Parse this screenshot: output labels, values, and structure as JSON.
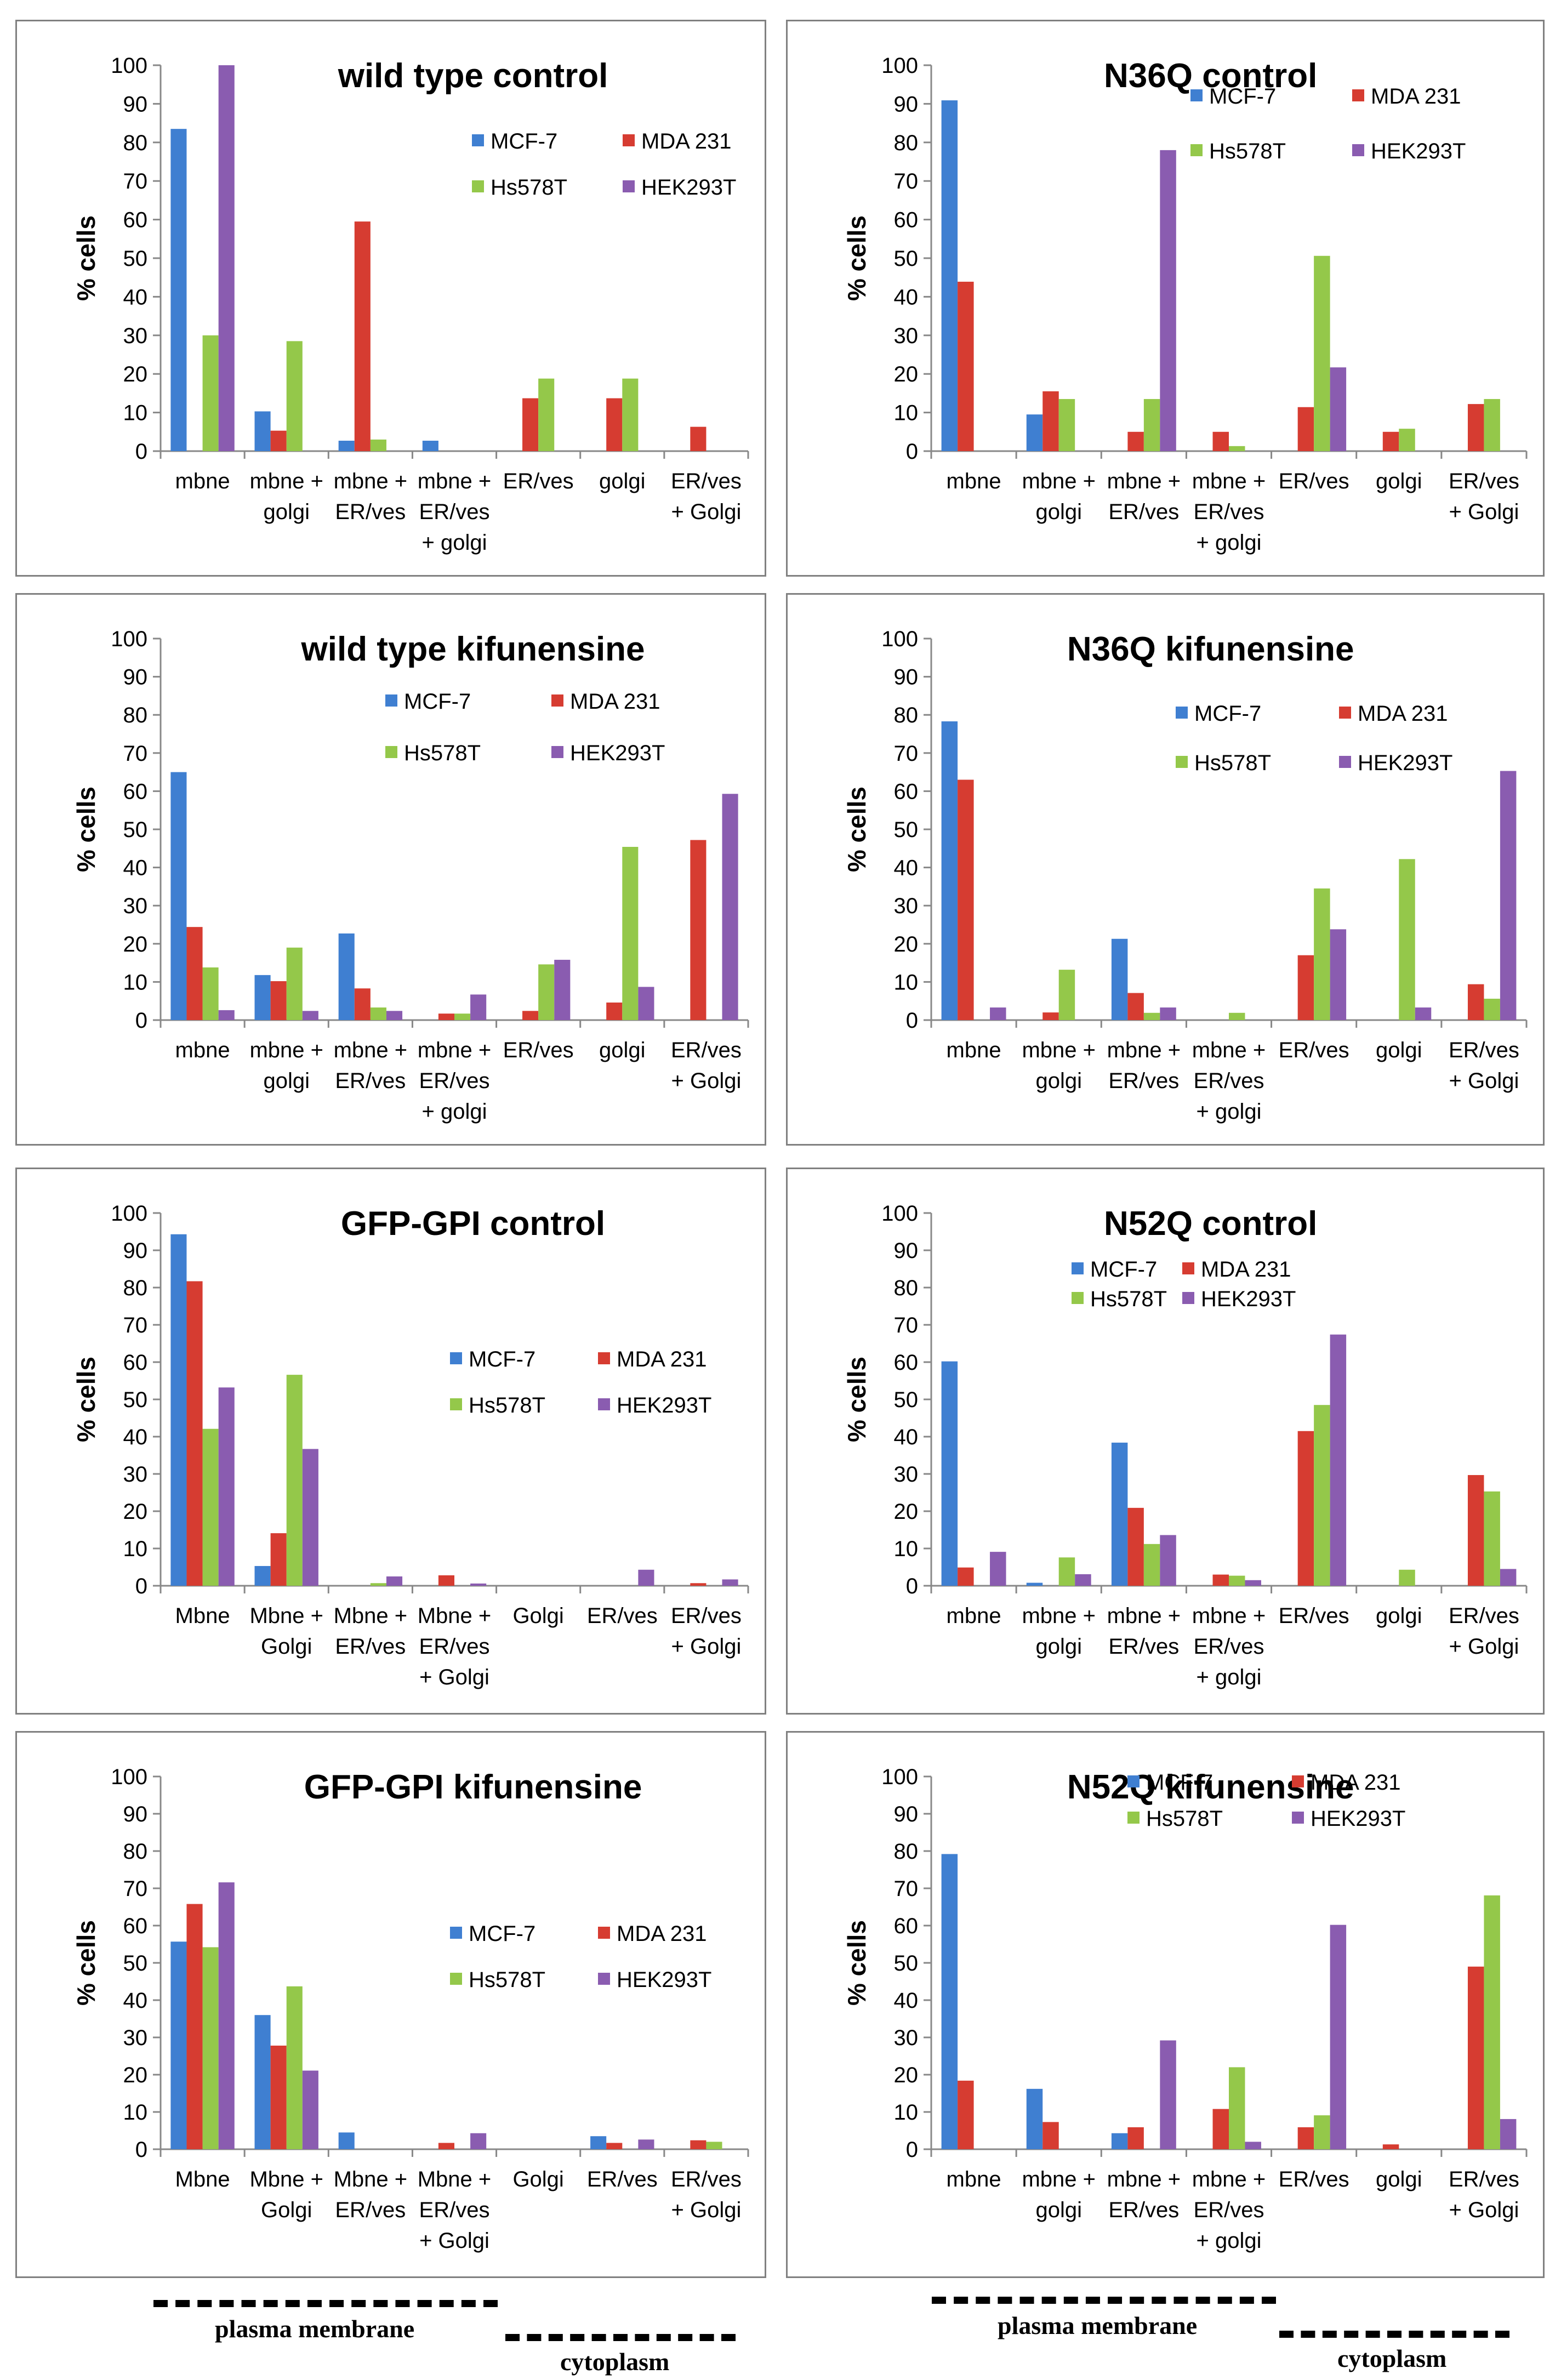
{
  "colors": {
    "MCF-7": "#3f7fd1",
    "MDA 231": "#d63c31",
    "Hs578T": "#94c84a",
    "HEK293T": "#8a5cb0",
    "axis": "#888888"
  },
  "y_axis_label": "% cells",
  "footer": {
    "left_group": {
      "plasma_membrane": "plasma membrane",
      "cytoplasm": "cytoplasm"
    },
    "right_group": {
      "plasma_membrane": "plasma membrane",
      "cytoplasm": "cytoplasm"
    }
  },
  "chart_data": [
    {
      "id": "wt-control",
      "type": "bar",
      "title": "wild type control",
      "ylabel": "% cells",
      "ylim": [
        0,
        100
      ],
      "yticks": [
        0,
        10,
        20,
        30,
        40,
        50,
        60,
        70,
        80,
        90,
        100
      ],
      "legend_position": "top-right",
      "legend_rows": 2,
      "categories": [
        [
          "mbne"
        ],
        [
          "mbne +",
          "golgi"
        ],
        [
          "mbne +",
          "ER/ves"
        ],
        [
          "mbne +",
          "ER/ves",
          "+ golgi"
        ],
        [
          "ER/ves"
        ],
        [
          "golgi"
        ],
        [
          "ER/ves",
          "+ Golgi"
        ]
      ],
      "series": [
        {
          "name": "MCF-7",
          "values": [
            83.5,
            10.3,
            2.7,
            2.7,
            0,
            0,
            0
          ]
        },
        {
          "name": "MDA 231",
          "values": [
            0,
            5.3,
            59.5,
            0,
            13.7,
            13.7,
            6.3
          ]
        },
        {
          "name": "Hs578T",
          "values": [
            30,
            28.5,
            3,
            0,
            18.8,
            18.8,
            0
          ]
        },
        {
          "name": "HEK293T",
          "values": [
            100,
            0,
            0,
            0,
            0,
            0,
            0
          ]
        }
      ]
    },
    {
      "id": "n36q-control",
      "type": "bar",
      "title": "N36Q control",
      "ylabel": "% cells",
      "ylim": [
        0,
        100
      ],
      "yticks": [
        0,
        10,
        20,
        30,
        40,
        50,
        60,
        70,
        80,
        90,
        100
      ],
      "legend_position": "top-right",
      "legend_rows": 2,
      "categories": [
        [
          "mbne"
        ],
        [
          "mbne +",
          "golgi"
        ],
        [
          "mbne +",
          "ER/ves"
        ],
        [
          "mbne +",
          "ER/ves",
          "+ golgi"
        ],
        [
          "ER/ves"
        ],
        [
          "golgi"
        ],
        [
          "ER/ves",
          "+ Golgi"
        ]
      ],
      "series": [
        {
          "name": "MCF-7",
          "values": [
            90.9,
            9.5,
            0,
            0,
            0,
            0,
            0
          ]
        },
        {
          "name": "MDA 231",
          "values": [
            43.9,
            15.5,
            5,
            5,
            11.4,
            5,
            12.2
          ]
        },
        {
          "name": "Hs578T",
          "values": [
            0,
            13.5,
            13.5,
            1.3,
            50.6,
            5.8,
            13.5
          ]
        },
        {
          "name": "HEK293T",
          "values": [
            0,
            0,
            78,
            0,
            21.7,
            0,
            0
          ]
        }
      ]
    },
    {
      "id": "wt-kif",
      "type": "bar",
      "title": "wild type kifunensine",
      "ylabel": "% cells",
      "ylim": [
        0,
        100
      ],
      "yticks": [
        0,
        10,
        20,
        30,
        40,
        50,
        60,
        70,
        80,
        90,
        100
      ],
      "legend_position": "top-right",
      "legend_rows": 2,
      "categories": [
        [
          "mbne"
        ],
        [
          "mbne +",
          "golgi"
        ],
        [
          "mbne +",
          "ER/ves"
        ],
        [
          "mbne +",
          "ER/ves",
          "+ golgi"
        ],
        [
          "ER/ves"
        ],
        [
          "golgi"
        ],
        [
          "ER/ves",
          "+ Golgi"
        ]
      ],
      "series": [
        {
          "name": "MCF-7",
          "values": [
            65,
            11.8,
            22.7,
            0,
            0,
            0,
            0
          ]
        },
        {
          "name": "MDA 231",
          "values": [
            24.4,
            10.2,
            8.3,
            1.7,
            2.4,
            4.6,
            47.2
          ]
        },
        {
          "name": "Hs578T",
          "values": [
            13.8,
            19,
            3.3,
            1.7,
            14.6,
            45.4,
            0
          ]
        },
        {
          "name": "HEK293T",
          "values": [
            2.6,
            2.4,
            2.4,
            6.7,
            15.8,
            8.7,
            59.3
          ]
        }
      ]
    },
    {
      "id": "n36q-kif",
      "type": "bar",
      "title": "N36Q kifunensine",
      "ylabel": "% cells",
      "ylim": [
        0,
        100
      ],
      "yticks": [
        0,
        10,
        20,
        30,
        40,
        50,
        60,
        70,
        80,
        90,
        100
      ],
      "legend_position": "top-right",
      "legend_rows": 2,
      "categories": [
        [
          "mbne"
        ],
        [
          "mbne +",
          "golgi"
        ],
        [
          "mbne +",
          "ER/ves"
        ],
        [
          "mbne +",
          "ER/ves",
          "+ golgi"
        ],
        [
          "ER/ves"
        ],
        [
          "golgi"
        ],
        [
          "ER/ves",
          "+ Golgi"
        ]
      ],
      "series": [
        {
          "name": "MCF-7",
          "values": [
            78.3,
            0,
            21.3,
            0,
            0,
            0,
            0
          ]
        },
        {
          "name": "MDA 231",
          "values": [
            63,
            2,
            7.1,
            0,
            17,
            0,
            9.4
          ]
        },
        {
          "name": "Hs578T",
          "values": [
            0,
            13.2,
            1.9,
            1.9,
            34.5,
            42.2,
            5.6
          ]
        },
        {
          "name": "HEK293T",
          "values": [
            3.3,
            0,
            3.3,
            0,
            23.8,
            3.3,
            65.3
          ]
        }
      ]
    },
    {
      "id": "gfp-control",
      "type": "bar",
      "title": "GFP-GPI control",
      "ylabel": "% cells",
      "ylim": [
        0,
        100
      ],
      "yticks": [
        0,
        10,
        20,
        30,
        40,
        50,
        60,
        70,
        80,
        90,
        100
      ],
      "legend_position": "right",
      "legend_rows": 2,
      "categories": [
        [
          "Mbne"
        ],
        [
          "Mbne +",
          "Golgi"
        ],
        [
          "Mbne +",
          "ER/ves"
        ],
        [
          "Mbne +",
          "ER/ves",
          "+ Golgi"
        ],
        [
          "Golgi"
        ],
        [
          "ER/ves"
        ],
        [
          "ER/ves",
          "+ Golgi"
        ]
      ],
      "series": [
        {
          "name": "MCF-7",
          "values": [
            94.3,
            5.3,
            0,
            0,
            0,
            0,
            0
          ]
        },
        {
          "name": "MDA 231",
          "values": [
            81.7,
            14.1,
            0,
            2.8,
            0,
            0,
            0.7
          ]
        },
        {
          "name": "Hs578T",
          "values": [
            42.1,
            56.6,
            0.7,
            0,
            0,
            0,
            0
          ]
        },
        {
          "name": "HEK293T",
          "values": [
            53.2,
            36.7,
            2.5,
            0.6,
            0,
            4.3,
            1.7
          ]
        }
      ]
    },
    {
      "id": "n52q-control",
      "type": "bar",
      "title": "N52Q control",
      "ylabel": "% cells",
      "ylim": [
        0,
        100
      ],
      "yticks": [
        0,
        10,
        20,
        30,
        40,
        50,
        60,
        70,
        80,
        90,
        100
      ],
      "legend_position": "top-right",
      "legend_rows": 2,
      "categories": [
        [
          "mbne"
        ],
        [
          "mbne +",
          "golgi"
        ],
        [
          "mbne +",
          "ER/ves"
        ],
        [
          "mbne +",
          "ER/ves",
          "+ golgi"
        ],
        [
          "ER/ves"
        ],
        [
          "golgi"
        ],
        [
          "ER/ves",
          "+ Golgi"
        ]
      ],
      "series": [
        {
          "name": "MCF-7",
          "values": [
            60.2,
            0.8,
            38.4,
            0,
            0,
            0,
            0
          ]
        },
        {
          "name": "MDA 231",
          "values": [
            4.9,
            0,
            20.9,
            3,
            41.5,
            0,
            29.7
          ]
        },
        {
          "name": "Hs578T",
          "values": [
            0,
            7.6,
            11.2,
            2.7,
            48.5,
            4.3,
            25.3
          ]
        },
        {
          "name": "HEK293T",
          "values": [
            9.1,
            3.1,
            13.6,
            1.5,
            67.4,
            0,
            4.5
          ]
        }
      ]
    },
    {
      "id": "gfp-kif",
      "type": "bar",
      "title": "GFP-GPI kifunensine",
      "ylabel": "% cells",
      "ylim": [
        0,
        100
      ],
      "yticks": [
        0,
        10,
        20,
        30,
        40,
        50,
        60,
        70,
        80,
        90,
        100
      ],
      "legend_position": "right",
      "legend_rows": 2,
      "categories": [
        [
          "Mbne"
        ],
        [
          "Mbne +",
          "Golgi"
        ],
        [
          "Mbne +",
          "ER/ves"
        ],
        [
          "Mbne +",
          "ER/ves",
          "+ Golgi"
        ],
        [
          "Golgi"
        ],
        [
          "ER/ves"
        ],
        [
          "ER/ves",
          "+ Golgi"
        ]
      ],
      "series": [
        {
          "name": "MCF-7",
          "values": [
            55.7,
            36,
            4.5,
            0,
            0,
            3.5,
            0
          ]
        },
        {
          "name": "MDA 231",
          "values": [
            65.8,
            27.8,
            0,
            1.7,
            0,
            1.7,
            2.4
          ]
        },
        {
          "name": "Hs578T",
          "values": [
            54.2,
            43.7,
            0,
            0,
            0,
            0,
            2
          ]
        },
        {
          "name": "HEK293T",
          "values": [
            71.6,
            21.1,
            0,
            4.3,
            0,
            2.6,
            0
          ]
        }
      ]
    },
    {
      "id": "n52q-kif",
      "type": "bar",
      "title": "N52Q kifunensine",
      "ylabel": "% cells",
      "ylim": [
        0,
        100
      ],
      "yticks": [
        0,
        10,
        20,
        30,
        40,
        50,
        60,
        70,
        80,
        90,
        100
      ],
      "legend_position": "top-right",
      "legend_rows": 2,
      "categories": [
        [
          "mbne"
        ],
        [
          "mbne +",
          "golgi"
        ],
        [
          "mbne +",
          "ER/ves"
        ],
        [
          "mbne +",
          "ER/ves",
          "+ golgi"
        ],
        [
          "ER/ves"
        ],
        [
          "golgi"
        ],
        [
          "ER/ves",
          "+ Golgi"
        ]
      ],
      "series": [
        {
          "name": "MCF-7",
          "values": [
            79.2,
            16.2,
            4.3,
            0,
            0,
            0,
            0
          ]
        },
        {
          "name": "MDA 231",
          "values": [
            18.4,
            7.3,
            5.9,
            10.8,
            5.9,
            1.3,
            49
          ]
        },
        {
          "name": "Hs578T",
          "values": [
            0,
            0,
            0,
            22,
            9.1,
            0,
            68.1
          ]
        },
        {
          "name": "HEK293T",
          "values": [
            0,
            0,
            29.2,
            2,
            60.2,
            0,
            8.1
          ]
        }
      ]
    }
  ]
}
